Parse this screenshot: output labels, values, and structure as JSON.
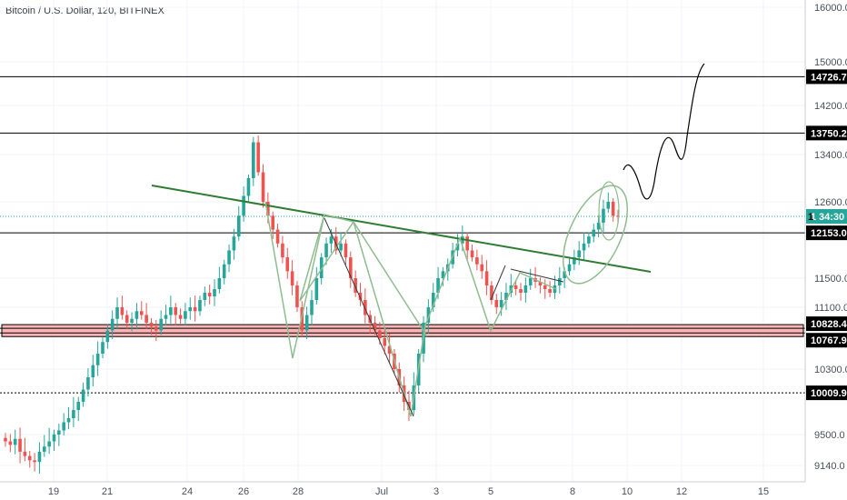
{
  "header": {
    "title": "Bitcoin / U.S. Dollar, 120, BITFINEX"
  },
  "colors": {
    "up": "#26a69a",
    "down": "#ef5350",
    "trendline": "#2e7d32",
    "pattern": "#8fbc8f",
    "support_zone": "#f9b5b5",
    "level_line": "#000000",
    "current_price_line": "#26a69a"
  },
  "chart_data": {
    "type": "candlestick",
    "title": "Bitcoin / U.S. Dollar, 120, BITFINEX",
    "ylim": [
      9000,
      16300
    ],
    "price_ticks": [
      "16000.0",
      "15000.0",
      "14200.0",
      "13400.0",
      "12600.0",
      "11500.0",
      "11100.0",
      "10300.0",
      "9500.0",
      "9140.0"
    ],
    "x_ticks": [
      "19",
      "21",
      "24",
      "26",
      "28",
      "Jul",
      "3",
      "5",
      "8",
      "10",
      "12",
      "15"
    ],
    "horizontal_levels": [
      {
        "value": 14726.7,
        "label": "14726.7",
        "style": "solid"
      },
      {
        "value": 13750.2,
        "label": "13750.2",
        "style": "solid"
      },
      {
        "value": 12153.0,
        "label": "12153.0",
        "style": "solid"
      },
      {
        "value": 10828.4,
        "label": "10828.4",
        "style": "solid"
      },
      {
        "value": 10767.9,
        "label": "10767.9",
        "style": "solid"
      },
      {
        "value": 10009.9,
        "label": "10009.9",
        "style": "dotted"
      }
    ],
    "current_price": {
      "value": 12391.0,
      "label": "12391.0"
    },
    "countdown": {
      "prefix": "1",
      "label": "34:30"
    },
    "support_zone": {
      "top": 10828.4,
      "bottom": 10767.9
    },
    "candles_close": [
      9420,
      9380,
      9450,
      9300,
      9250,
      9200,
      9180,
      9300,
      9360,
      9420,
      9500,
      9550,
      9650,
      9700,
      9800,
      9900,
      10050,
      10200,
      10350,
      10500,
      10650,
      10800,
      10950,
      11100,
      11000,
      10900,
      10950,
      11050,
      11000,
      10900,
      10850,
      10800,
      10950,
      11000,
      11100,
      11000,
      10950,
      11050,
      11100,
      11050,
      11200,
      11300,
      11250,
      11350,
      11500,
      11700,
      11900,
      12100,
      12400,
      12700,
      13000,
      13600,
      13100,
      12600,
      12400,
      12200,
      12000,
      11800,
      11600,
      11400,
      11100,
      10800,
      11000,
      11200,
      11500,
      11800,
      12000,
      12100,
      11900,
      12000,
      11800,
      11500,
      11300,
      11200,
      11000,
      10900,
      10800,
      10700,
      10600,
      10500,
      10300,
      10100,
      9900,
      9800,
      10100,
      10500,
      10900,
      11100,
      11300,
      11500,
      11600,
      11700,
      11900,
      12000,
      12100,
      11900,
      11800,
      11700,
      11600,
      11400,
      11200,
      11100,
      11200,
      11300,
      11400,
      11350,
      11300,
      11400,
      11500,
      11450,
      11400,
      11350,
      11300,
      11400,
      11500,
      11600,
      11700,
      11800,
      11900,
      12000,
      12100,
      12200,
      12300,
      12500,
      12600,
      12400,
      12391
    ]
  }
}
